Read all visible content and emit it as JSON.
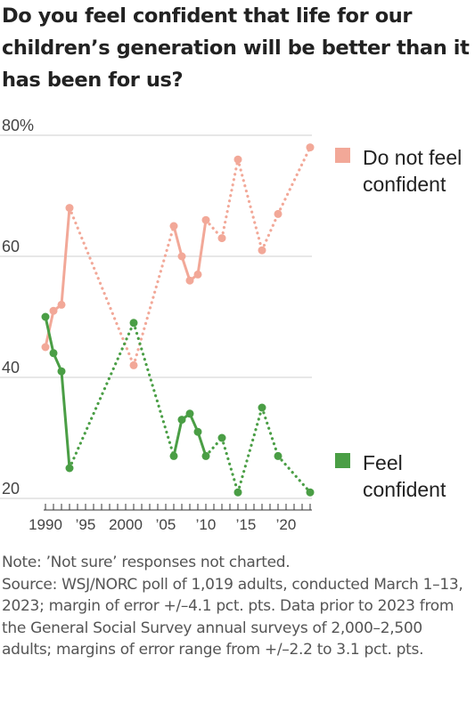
{
  "title": "Do you feel confident that life for our children’s generation will be better than it has been for us?",
  "chart_data": {
    "type": "line",
    "title": "Do you feel confident that life for our children’s generation will be better than it has been for us?",
    "y_unit_label": "80%",
    "ylim": [
      20,
      80
    ],
    "yticks": [
      {
        "value": 80,
        "label": "80%"
      },
      {
        "value": 60,
        "label": "60"
      },
      {
        "value": 40,
        "label": "40"
      },
      {
        "value": 20,
        "label": "20"
      }
    ],
    "xlim": [
      1989,
      2023
    ],
    "xticks": [
      {
        "value": 1990,
        "label": "1990"
      },
      {
        "value": 1995,
        "label": "’95"
      },
      {
        "value": 2000,
        "label": "2000"
      },
      {
        "value": 2005,
        "label": "’05"
      },
      {
        "value": 2010,
        "label": "’10"
      },
      {
        "value": 2015,
        "label": "’15"
      },
      {
        "value": 2020,
        "label": "’20"
      }
    ],
    "grid": true,
    "legend": "right, labels beside lines",
    "series": [
      {
        "name": "Do not feel confident",
        "color": "#f2a898",
        "x": [
          1990,
          1991,
          1992,
          1993,
          2001,
          2006,
          2007,
          2008,
          2009,
          2010,
          2012,
          2014,
          2017,
          2019,
          2023
        ],
        "values": [
          45,
          51,
          52,
          68,
          42,
          65,
          60,
          56,
          57,
          66,
          63,
          76,
          61,
          67,
          78
        ]
      },
      {
        "name": "Feel confident",
        "color": "#4a9e45",
        "x": [
          1990,
          1991,
          1992,
          1993,
          2001,
          2006,
          2007,
          2008,
          2009,
          2010,
          2012,
          2014,
          2017,
          2019,
          2023
        ],
        "values": [
          50,
          44,
          41,
          25,
          49,
          27,
          33,
          34,
          31,
          27,
          30,
          21,
          35,
          27,
          21
        ]
      }
    ]
  },
  "legend_items": [
    {
      "lines": [
        "Do not feel",
        "confident"
      ],
      "color": "#f2a898"
    },
    {
      "lines": [
        "Feel",
        "confident"
      ],
      "color": "#4a9e45"
    }
  ],
  "notes": {
    "note": "Note: ’Not sure’ responses not charted.",
    "source": "Source: WSJ/NORC poll of 1,019 adults, conducted March 1–13, 2023; margin of error +/–4.1 pct. pts. Data prior to 2023 from the General Social Survey annual surveys of 2,000–2,500 adults; margins of error range from +/–2.2 to 3.1 pct. pts."
  }
}
